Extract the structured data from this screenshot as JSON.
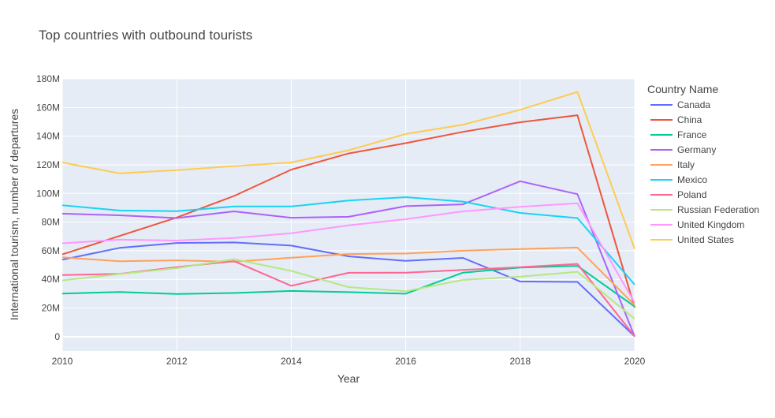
{
  "chart_data": {
    "type": "line",
    "title": "Top countries with outbound tourists",
    "xlabel": "Year",
    "ylabel": "International tourism, number of departures",
    "legend_title": "Country Name",
    "legend_position": "right",
    "grid": true,
    "xlim": [
      2010,
      2020
    ],
    "ylim": [
      -10000000,
      180000000
    ],
    "x_ticks": [
      {
        "value": 2010,
        "label": "2010"
      },
      {
        "value": 2012,
        "label": "2012"
      },
      {
        "value": 2014,
        "label": "2014"
      },
      {
        "value": 2016,
        "label": "2016"
      },
      {
        "value": 2018,
        "label": "2018"
      },
      {
        "value": 2020,
        "label": "2020"
      }
    ],
    "y_ticks": [
      {
        "value": 0,
        "label": "0"
      },
      {
        "value": 20000000,
        "label": "20M"
      },
      {
        "value": 40000000,
        "label": "40M"
      },
      {
        "value": 60000000,
        "label": "60M"
      },
      {
        "value": 80000000,
        "label": "80M"
      },
      {
        "value": 100000000,
        "label": "100M"
      },
      {
        "value": 120000000,
        "label": "120M"
      },
      {
        "value": 140000000,
        "label": "140M"
      },
      {
        "value": 160000000,
        "label": "160M"
      },
      {
        "value": 180000000,
        "label": "180M"
      }
    ],
    "x": [
      2010,
      2011,
      2012,
      2013,
      2014,
      2015,
      2016,
      2017,
      2018,
      2019,
      2020
    ],
    "series": [
      {
        "name": "Canada",
        "color": "#636efa",
        "values": [
          53700000,
          62000000,
          65400000,
          65800000,
          63600000,
          56100000,
          52900000,
          55000000,
          38500000,
          38200000,
          200000
        ]
      },
      {
        "name": "China",
        "color": "#EF553B",
        "values": [
          57400000,
          70300000,
          83200000,
          98200000,
          116600000,
          127900000,
          135100000,
          143000000,
          149700000,
          154600000,
          20300000
        ]
      },
      {
        "name": "France",
        "color": "#00cc96",
        "values": [
          30100000,
          31200000,
          29800000,
          30500000,
          31900000,
          31100000,
          30000000,
          44700000,
          48200000,
          49400000,
          21000000
        ]
      },
      {
        "name": "Germany",
        "color": "#ab63fa",
        "values": [
          85900000,
          84700000,
          82800000,
          87500000,
          83000000,
          83700000,
          91100000,
          92400000,
          108500000,
          99500000,
          100000
        ]
      },
      {
        "name": "Italy",
        "color": "#FFA15A",
        "values": [
          55400000,
          52600000,
          53300000,
          52300000,
          55100000,
          57700000,
          58000000,
          60000000,
          61200000,
          62200000,
          22000000
        ]
      },
      {
        "name": "Mexico",
        "color": "#19d3f3",
        "values": [
          91800000,
          88100000,
          87600000,
          90900000,
          90900000,
          95100000,
          97400000,
          94300000,
          86400000,
          82800000,
          36300000
        ]
      },
      {
        "name": "Poland",
        "color": "#FF6692",
        "values": [
          43000000,
          43800000,
          48500000,
          52700000,
          35500000,
          44600000,
          44700000,
          46600000,
          48500000,
          50800000,
          200000
        ]
      },
      {
        "name": "Russian Federation",
        "color": "#B6E880",
        "values": [
          39300000,
          43700000,
          47800000,
          54100000,
          45900000,
          34600000,
          31700000,
          39600000,
          41900000,
          45300000,
          12400000
        ]
      },
      {
        "name": "United Kingdom",
        "color": "#FF97FF",
        "values": [
          65200000,
          67700000,
          67100000,
          68900000,
          72200000,
          77700000,
          82000000,
          87500000,
          90600000,
          93100000,
          23600000
        ]
      },
      {
        "name": "United States",
        "color": "#FECB52",
        "values": [
          121600000,
          114000000,
          116200000,
          119100000,
          121600000,
          130100000,
          141500000,
          148000000,
          158400000,
          170900000,
          61300000
        ]
      }
    ]
  }
}
